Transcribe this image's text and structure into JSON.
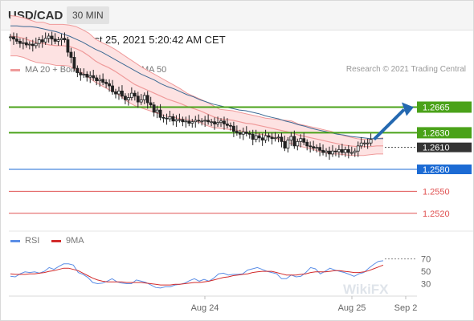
{
  "header": {
    "symbol": "USD/CAD",
    "timeframe": "30 MIN"
  },
  "datetime": "Wednesday, August 25, 2021 5:20:42 AM CET",
  "legend": {
    "bollinger": "MA 20 + Bollinger Bands",
    "ma50": "MA 50",
    "rsi": "RSI",
    "rsi_ma": "9MA"
  },
  "credit": "Research © 2021 Trading Central",
  "watermark": "WikiFX",
  "colors": {
    "bollinger": "#ef9a9a",
    "bollinger_fill": "#fde2e2",
    "ma50": "#3d6a94",
    "support_green": "#4aa219",
    "support_blue": "#1c6bd4",
    "resistance_red": "#e05252",
    "rsi": "#5b8ee6",
    "rsi_ma": "#d22b2b",
    "arrow": "#2468b0",
    "price_label": "#333333"
  },
  "chart_data": [
    {
      "type": "candlestick",
      "title": "",
      "ylim": [
        1.25,
        1.2705
      ],
      "x_ticks": [
        "Aug 24",
        "Aug 25",
        "Sep 2"
      ],
      "levels": [
        {
          "value": 1.2665,
          "label": "1.2665",
          "style": "green-band"
        },
        {
          "value": 1.263,
          "label": "1.2630",
          "style": "green-band"
        },
        {
          "value": 1.261,
          "label": "1.2610",
          "style": "current"
        },
        {
          "value": 1.258,
          "label": "1.2580",
          "style": "blue"
        },
        {
          "value": 1.255,
          "label": "1.2550",
          "style": "red"
        },
        {
          "value": 1.252,
          "label": "1.2520",
          "style": "red"
        }
      ],
      "close": [
        1.2761,
        1.2758,
        1.2755,
        1.2752,
        1.2753,
        1.275,
        1.2751,
        1.2749,
        1.2752,
        1.2757,
        1.2754,
        1.2759,
        1.2762,
        1.2758,
        1.2755,
        1.2757,
        1.2759,
        1.2757,
        1.274,
        1.2733,
        1.2718,
        1.2712,
        1.2709,
        1.271,
        1.2706,
        1.2708,
        1.2705,
        1.2701,
        1.2703,
        1.2699,
        1.2697,
        1.2694,
        1.2686,
        1.2683,
        1.2687,
        1.268,
        1.2675,
        1.2678,
        1.2684,
        1.268,
        1.2672,
        1.2675,
        1.2681,
        1.2671,
        1.2668,
        1.2658,
        1.2661,
        1.2651,
        1.265,
        1.2649,
        1.2652,
        1.2646,
        1.2648,
        1.2648,
        1.2645,
        1.2646,
        1.2643,
        1.2645,
        1.2647,
        1.2646,
        1.2646,
        1.2647,
        1.2645,
        1.2645,
        1.2642,
        1.2644,
        1.2646,
        1.2642,
        1.264,
        1.2639,
        1.2632,
        1.263,
        1.2628,
        1.2631,
        1.2629,
        1.2628,
        1.2621,
        1.2626,
        1.2623,
        1.262,
        1.2626,
        1.2624,
        1.2622,
        1.2623,
        1.2624,
        1.2618,
        1.2609,
        1.262,
        1.2625,
        1.2612,
        1.2618,
        1.2622,
        1.2617,
        1.2612,
        1.2611,
        1.2609,
        1.261,
        1.2606,
        1.2603,
        1.2605,
        1.2601,
        1.2605,
        1.2604,
        1.2607,
        1.2603,
        1.2607,
        1.2603,
        1.2603,
        1.2605,
        1.2612,
        1.2616,
        1.2616,
        1.2616,
        1.2621
      ],
      "ma20_mid": [
        1.2762,
        1.2761,
        1.2759,
        1.2756,
        1.2753,
        1.2752,
        1.275,
        1.2749,
        1.2749,
        1.2748,
        1.2745,
        1.2741,
        1.2735,
        1.2728,
        1.2723,
        1.2719,
        1.2714,
        1.2708,
        1.2702,
        1.2696,
        1.2692,
        1.2688,
        1.2684,
        1.268,
        1.2676,
        1.2673,
        1.267,
        1.2666,
        1.2663,
        1.266,
        1.2656,
        1.2652,
        1.2649,
        1.2648,
        1.2647,
        1.2645,
        1.2643,
        1.2642,
        1.264,
        1.2638,
        1.2636,
        1.2634,
        1.2632,
        1.263,
        1.2627,
        1.2625,
        1.2623,
        1.2621,
        1.2619,
        1.2617,
        1.2615,
        1.2613,
        1.2612,
        1.2611,
        1.2611,
        1.2611,
        1.2612,
        1.2612
      ],
      "ma20_upper": [
        1.279,
        1.2789,
        1.2787,
        1.2784,
        1.2781,
        1.2781,
        1.2778,
        1.2778,
        1.2778,
        1.2777,
        1.2775,
        1.2771,
        1.2766,
        1.2758,
        1.2753,
        1.2749,
        1.2744,
        1.2738,
        1.2732,
        1.2726,
        1.272,
        1.2715,
        1.271,
        1.2705,
        1.27,
        1.2695,
        1.269,
        1.2684,
        1.268,
        1.2676,
        1.2672,
        1.2667,
        1.2662,
        1.2661,
        1.266,
        1.2658,
        1.2656,
        1.2654,
        1.2652,
        1.265,
        1.2649,
        1.2648,
        1.2647,
        1.2646,
        1.2642,
        1.264,
        1.2638,
        1.2636,
        1.2634,
        1.2632,
        1.2629,
        1.2626,
        1.2624,
        1.2622,
        1.2621,
        1.2621,
        1.2622,
        1.2623
      ],
      "ma20_lower": [
        1.2735,
        1.2735,
        1.2733,
        1.2729,
        1.2726,
        1.2725,
        1.2724,
        1.2722,
        1.2722,
        1.2721,
        1.2716,
        1.2712,
        1.2705,
        1.2699,
        1.2694,
        1.2689,
        1.2685,
        1.2679,
        1.2672,
        1.2667,
        1.2664,
        1.2661,
        1.2658,
        1.2655,
        1.2652,
        1.2651,
        1.2649,
        1.2648,
        1.2646,
        1.2644,
        1.264,
        1.2637,
        1.2636,
        1.2635,
        1.2634,
        1.2633,
        1.2631,
        1.263,
        1.2628,
        1.2627,
        1.2624,
        1.2621,
        1.2617,
        1.2615,
        1.2612,
        1.261,
        1.2608,
        1.2605,
        1.2603,
        1.2601,
        1.2601,
        1.26,
        1.2599,
        1.2599,
        1.2599,
        1.26,
        1.2601,
        1.2601
      ],
      "ma50": [
        1.2776,
        1.2776,
        1.2775,
        1.2775,
        1.2774,
        1.2772,
        1.277,
        1.2768,
        1.2765,
        1.2762,
        1.2758,
        1.2754,
        1.2749,
        1.2744,
        1.274,
        1.2735,
        1.273,
        1.2725,
        1.272,
        1.2715,
        1.271,
        1.2706,
        1.2702,
        1.2697,
        1.2693,
        1.269,
        1.2686,
        1.2682,
        1.2679,
        1.2675,
        1.2672,
        1.2669,
        1.2667,
        1.2665,
        1.2663,
        1.2661,
        1.266,
        1.2658,
        1.2656,
        1.2653,
        1.2651,
        1.2649,
        1.2646,
        1.2644,
        1.2641,
        1.2639,
        1.2636,
        1.2634,
        1.2632,
        1.263,
        1.2628,
        1.2627,
        1.2625,
        1.2624,
        1.2623,
        1.2622,
        1.2622,
        1.2622
      ]
    },
    {
      "type": "line",
      "title": "",
      "ylim": [
        10,
        85
      ],
      "y_ticks": [
        70,
        50,
        30
      ],
      "reference_line": 70,
      "series": [
        {
          "name": "RSI",
          "values": [
            42,
            41,
            46,
            49,
            48,
            49,
            47,
            50,
            56,
            53,
            58,
            62,
            62,
            60,
            48,
            45,
            40,
            32,
            30,
            31,
            34,
            38,
            33,
            31,
            30,
            30,
            36,
            34,
            32,
            28,
            24,
            23,
            25,
            25,
            28,
            29,
            31,
            35,
            38,
            34,
            37,
            34,
            39,
            46,
            47,
            44,
            45,
            45,
            46,
            52,
            54,
            56,
            53,
            50,
            48,
            46,
            38,
            38,
            44,
            41,
            42,
            48,
            56,
            54,
            46,
            50,
            55,
            52,
            50,
            48,
            45,
            42,
            46,
            48,
            55,
            61,
            66,
            67
          ]
        },
        {
          "name": "9MA",
          "values": [
            46,
            45,
            45,
            45,
            46,
            46,
            47,
            48,
            50,
            51,
            53,
            55,
            55,
            53,
            51,
            47,
            43,
            39,
            36,
            34,
            33,
            33,
            33,
            33,
            32,
            32,
            32,
            32,
            31,
            30,
            29,
            28,
            28,
            28,
            29,
            29,
            30,
            31,
            32,
            32,
            33,
            34,
            36,
            38,
            40,
            41,
            43,
            44,
            45,
            46,
            48,
            49,
            50,
            50,
            50,
            48,
            46,
            44,
            44,
            44,
            45,
            46,
            48,
            49,
            49,
            49,
            50,
            51,
            51,
            50,
            49,
            48,
            48,
            49,
            51,
            54,
            57,
            60
          ]
        }
      ]
    }
  ]
}
